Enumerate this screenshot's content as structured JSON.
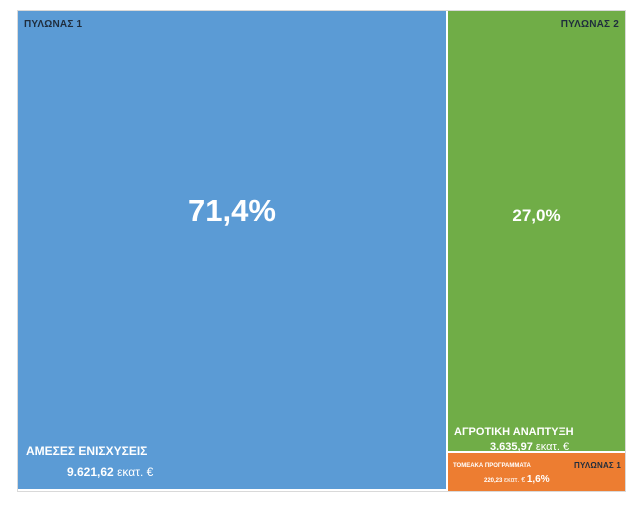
{
  "chart_data": {
    "type": "treemap",
    "colors": {
      "tile1": "#5b9bd5",
      "tile2": "#70ad47",
      "tile3": "#ed7d31"
    },
    "segments": [
      {
        "pillar": "ΠΥΛΩΝΑΣ 1",
        "name": "ΑΜΕΣΕΣ ΕΝΙΣΧΥΣΕΙΣ",
        "amount": "9.621,62",
        "unit": "εκατ. €",
        "percent_label": "71,4%",
        "percent": 71.4,
        "value": 9621.62
      },
      {
        "pillar": "ΠΥΛΩΝΑΣ 2",
        "name": "ΑΓΡΟΤΙΚΗ ΑΝΑΠΤΥΞΗ",
        "amount": "3.635,97",
        "unit": "εκατ. €",
        "percent_label": "27,0%",
        "percent": 27.0,
        "value": 3635.97
      },
      {
        "pillar": "ΠΥΛΩΝΑΣ 1",
        "name": "ΤΟΜΕΑΚΑ ΠΡΟΓΡΑΜΜΑΤΑ",
        "amount": "220,23",
        "unit": "εκατ. €",
        "percent_label": "1,6%",
        "percent": 1.6,
        "value": 220.23
      }
    ]
  }
}
